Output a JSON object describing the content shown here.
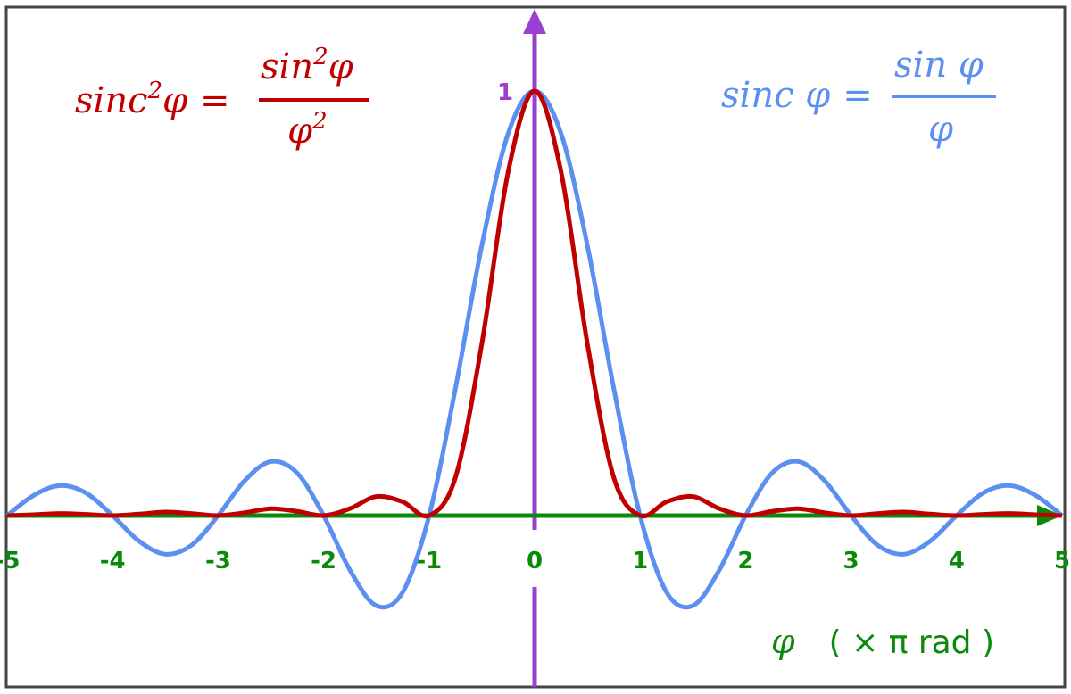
{
  "chart_data": {
    "type": "line",
    "x": [
      -5,
      -4.75,
      -4.5,
      -4.25,
      -4,
      -3.75,
      -3.5,
      -3.25,
      -3,
      -2.75,
      -2.5,
      -2.25,
      -2,
      -1.75,
      -1.5,
      -1.25,
      -1,
      -0.75,
      -0.5,
      -0.25,
      0,
      0.25,
      0.5,
      0.75,
      1,
      1.25,
      1.5,
      1.75,
      2,
      2.25,
      2.5,
      2.75,
      3,
      3.25,
      3.5,
      3.75,
      4,
      4.25,
      4.5,
      4.75,
      5
    ],
    "series": [
      {
        "name": "sinc φ = sin φ / φ",
        "color": "#5b8ff0",
        "values": [
          0,
          0.0474,
          0.0707,
          0.053,
          0,
          -0.06,
          -0.0909,
          -0.0693,
          0,
          0.0818,
          0.1273,
          0.1,
          0,
          -0.1286,
          -0.2122,
          -0.1801,
          0,
          0.3001,
          0.6366,
          0.9003,
          1,
          0.9003,
          0.6366,
          0.3001,
          0,
          -0.1801,
          -0.2122,
          -0.1286,
          0,
          0.1,
          0.1273,
          0.0818,
          0,
          -0.0693,
          -0.0909,
          -0.06,
          0,
          0.053,
          0.0707,
          0.0474,
          0
        ]
      },
      {
        "name": "sinc²φ = sin²φ / φ²",
        "color": "#c00000",
        "values": [
          0,
          0.0022,
          0.005,
          0.0028,
          0,
          0.0036,
          0.0083,
          0.0048,
          0,
          0.0067,
          0.0162,
          0.01,
          0,
          0.0165,
          0.045,
          0.0324,
          0,
          0.0901,
          0.4053,
          0.8106,
          1,
          0.8106,
          0.4053,
          0.0901,
          0,
          0.0324,
          0.045,
          0.0165,
          0,
          0.01,
          0.0162,
          0.0067,
          0,
          0.0048,
          0.0083,
          0.0036,
          0,
          0.0028,
          0.005,
          0.0022,
          0
        ]
      }
    ],
    "xlim": [
      -5,
      5
    ],
    "ylim": [
      -0.25,
      1.1
    ],
    "x_ticks": [
      "-5",
      "-4",
      "-3",
      "-2",
      "-1",
      "0",
      "1",
      "2",
      "3",
      "4",
      "5"
    ],
    "y_tick_label": "1",
    "xlabel": {
      "symbol": "φ",
      "unit": "( × π  rad )"
    },
    "grid": false,
    "axis_colors": {
      "x": "#0a8a0a",
      "y": "#9b3fd0"
    },
    "equations": {
      "sinc2": {
        "lhs": "sinc",
        "lhs_sup": "2",
        "lhs_var": "φ",
        "eq": "=",
        "num": "sin",
        "num_sup": "2",
        "num_var": "φ",
        "den": "φ",
        "den_sup": "2"
      },
      "sinc": {
        "lhs": "sinc φ",
        "eq": "=",
        "num": "sin φ",
        "den": "φ"
      }
    }
  }
}
